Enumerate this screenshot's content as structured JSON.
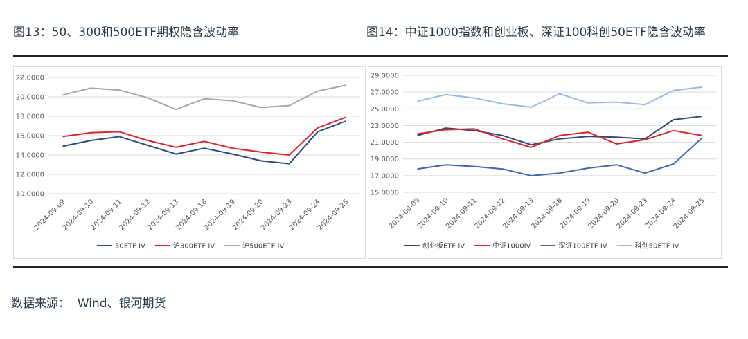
{
  "figures": {
    "left_title": "图13：50、300和500ETF期权隐含波动率",
    "right_title": "图14：中证1000指数和创业板、深证100科创50ETF隐含波动率"
  },
  "source": "数据来源：  Wind、银河期货",
  "chart_data": [
    {
      "type": "line",
      "title": "",
      "xlabel": "",
      "ylabel": "",
      "categories": [
        "2024-09-09",
        "2024-09-10",
        "2024-09-11",
        "2024-09-12",
        "2024-09-13",
        "2024-09-18",
        "2024-09-19",
        "2024-09-20",
        "2024-09-23",
        "2024-09-24",
        "2024-09-25"
      ],
      "ylim": [
        10,
        22
      ],
      "yticks": [
        10,
        12,
        14,
        16,
        18,
        20,
        22
      ],
      "ytick_labels": [
        "10.0000",
        "12.0000",
        "14.0000",
        "16.0000",
        "18.0000",
        "20.0000",
        "22.0000"
      ],
      "grid": "horizontal",
      "legend": "bottom",
      "series": [
        {
          "name": "50ETF IV",
          "color": "#2e4a7d",
          "values": [
            14.9,
            15.5,
            15.9,
            15.0,
            14.1,
            14.7,
            14.1,
            13.4,
            13.1,
            16.4,
            17.5
          ]
        },
        {
          "name": "沪300ETF IV",
          "color": "#d9262b",
          "values": [
            15.9,
            16.3,
            16.4,
            15.5,
            14.8,
            15.4,
            14.7,
            14.3,
            14.0,
            16.8,
            17.9
          ]
        },
        {
          "name": "沪500ETF IV",
          "color": "#a6a6a6",
          "values": [
            20.2,
            20.9,
            20.7,
            19.9,
            18.7,
            19.8,
            19.6,
            18.9,
            19.1,
            20.6,
            21.2
          ]
        }
      ]
    },
    {
      "type": "line",
      "title": "",
      "xlabel": "",
      "ylabel": "",
      "categories": [
        "2024-09-09",
        "2024-09-10",
        "2024-09-11",
        "2024-09-12",
        "2024-09-13",
        "2024-09-18",
        "2024-09-19",
        "2024-09-20",
        "2024-09-23",
        "2024-09-24",
        "2024-09-25"
      ],
      "ylim": [
        15,
        29
      ],
      "yticks": [
        15,
        17,
        19,
        21,
        23,
        25,
        27,
        29
      ],
      "ytick_labels": [
        "15.0000",
        "17.0000",
        "19.0000",
        "21.0000",
        "23.0000",
        "25.0000",
        "27.0000",
        "29.0000"
      ],
      "grid": "horizontal",
      "legend": "bottom",
      "series": [
        {
          "name": "创业板ETF IV",
          "color": "#2e4a7d",
          "values": [
            21.8,
            22.7,
            22.4,
            21.8,
            20.7,
            21.4,
            21.7,
            21.6,
            21.4,
            23.7,
            24.1
          ]
        },
        {
          "name": "中证1000IV",
          "color": "#d9262b",
          "values": [
            22.0,
            22.5,
            22.6,
            21.4,
            20.4,
            21.8,
            22.2,
            20.8,
            21.3,
            22.4,
            21.8
          ]
        },
        {
          "name": "深证100ETF IV",
          "color": "#4267b2",
          "values": [
            17.8,
            18.3,
            18.1,
            17.8,
            17.0,
            17.3,
            17.9,
            18.3,
            17.3,
            18.4,
            21.5
          ]
        },
        {
          "name": "科创50ETF IV",
          "color": "#9fb8e0",
          "values": [
            25.9,
            26.7,
            26.3,
            25.6,
            25.2,
            26.8,
            25.7,
            25.8,
            25.5,
            27.2,
            27.6
          ]
        }
      ]
    }
  ]
}
